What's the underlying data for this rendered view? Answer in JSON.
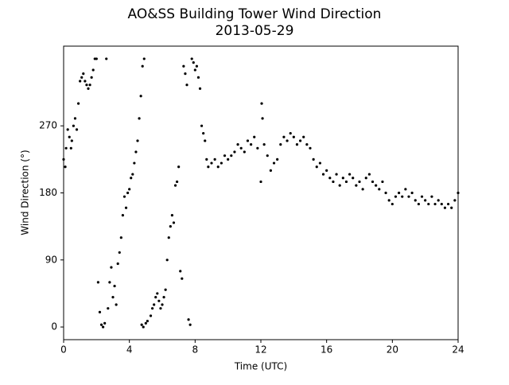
{
  "chart_data": {
    "type": "scatter",
    "title": "AO&SS Building Tower Wind Direction",
    "subtitle": "2013-05-29",
    "x_label": "Time (UTC)",
    "y_label": "Wind Direction (°)",
    "color": "#000000",
    "xlim": [
      0,
      24
    ],
    "ylim": [
      -17,
      377
    ],
    "xticks": [
      0,
      4,
      8,
      12,
      16,
      20,
      24
    ],
    "yticks": [
      0,
      90,
      180,
      270
    ],
    "grid": false,
    "x": [
      0.0,
      0.1,
      0.15,
      0.25,
      0.35,
      0.45,
      0.5,
      0.6,
      0.7,
      0.8,
      0.9,
      1.0,
      1.1,
      1.2,
      1.3,
      1.4,
      1.5,
      1.6,
      1.7,
      1.8,
      1.9,
      2.0,
      2.1,
      2.2,
      2.3,
      2.4,
      2.5,
      2.6,
      2.7,
      2.8,
      2.9,
      3.0,
      3.1,
      3.2,
      3.3,
      3.4,
      3.5,
      3.6,
      3.7,
      3.8,
      3.9,
      4.0,
      4.1,
      4.2,
      4.3,
      4.4,
      4.5,
      4.6,
      4.7,
      4.8,
      4.9,
      4.75,
      4.85,
      5.0,
      5.1,
      5.3,
      5.4,
      5.5,
      5.6,
      5.7,
      5.8,
      5.9,
      6.0,
      6.1,
      6.2,
      6.3,
      6.4,
      6.5,
      6.6,
      6.7,
      6.8,
      6.9,
      7.0,
      7.1,
      7.2,
      7.3,
      7.4,
      7.5,
      7.6,
      7.7,
      7.8,
      7.9,
      8.0,
      8.1,
      8.2,
      8.3,
      8.4,
      8.5,
      8.6,
      8.7,
      8.8,
      9.0,
      9.2,
      9.4,
      9.6,
      9.8,
      10.0,
      10.2,
      10.4,
      10.6,
      10.8,
      11.0,
      11.2,
      11.4,
      11.6,
      11.8,
      12.0,
      12.05,
      12.1,
      12.2,
      12.4,
      12.6,
      12.8,
      13.0,
      13.2,
      13.4,
      13.6,
      13.8,
      14.0,
      14.2,
      14.4,
      14.6,
      14.8,
      15.0,
      15.2,
      15.4,
      15.6,
      15.8,
      16.0,
      16.2,
      16.4,
      16.6,
      16.8,
      17.0,
      17.2,
      17.4,
      17.6,
      17.8,
      18.0,
      18.2,
      18.4,
      18.6,
      18.8,
      19.0,
      19.2,
      19.4,
      19.6,
      19.8,
      20.0,
      20.2,
      20.4,
      20.6,
      20.8,
      21.0,
      21.2,
      21.4,
      21.6,
      21.8,
      22.0,
      22.2,
      22.4,
      22.6,
      22.8,
      23.0,
      23.2,
      23.4,
      23.6,
      23.8,
      24.0
    ],
    "values": [
      225,
      215,
      240,
      265,
      255,
      240,
      250,
      270,
      280,
      265,
      300,
      330,
      335,
      340,
      330,
      325,
      320,
      325,
      335,
      345,
      360,
      360,
      60,
      20,
      3,
      0,
      5,
      360,
      25,
      60,
      80,
      40,
      55,
      30,
      85,
      100,
      120,
      150,
      175,
      160,
      180,
      185,
      200,
      205,
      220,
      235,
      250,
      280,
      310,
      350,
      360,
      3,
      0,
      5,
      8,
      15,
      25,
      30,
      40,
      45,
      35,
      25,
      30,
      40,
      50,
      90,
      120,
      135,
      150,
      140,
      190,
      195,
      215,
      75,
      65,
      350,
      340,
      325,
      10,
      3,
      360,
      355,
      345,
      350,
      335,
      320,
      270,
      260,
      250,
      225,
      215,
      220,
      225,
      215,
      220,
      230,
      225,
      230,
      235,
      245,
      240,
      235,
      250,
      245,
      255,
      240,
      195,
      300,
      280,
      245,
      230,
      210,
      220,
      225,
      245,
      255,
      250,
      260,
      255,
      245,
      250,
      255,
      245,
      240,
      225,
      215,
      220,
      205,
      210,
      200,
      195,
      205,
      190,
      200,
      195,
      205,
      200,
      190,
      195,
      185,
      200,
      205,
      195,
      190,
      185,
      195,
      180,
      170,
      165,
      175,
      180,
      175,
      185,
      175,
      180,
      170,
      165,
      175,
      170,
      165,
      175,
      165,
      170,
      165,
      160,
      165,
      160,
      170,
      180
    ]
  }
}
